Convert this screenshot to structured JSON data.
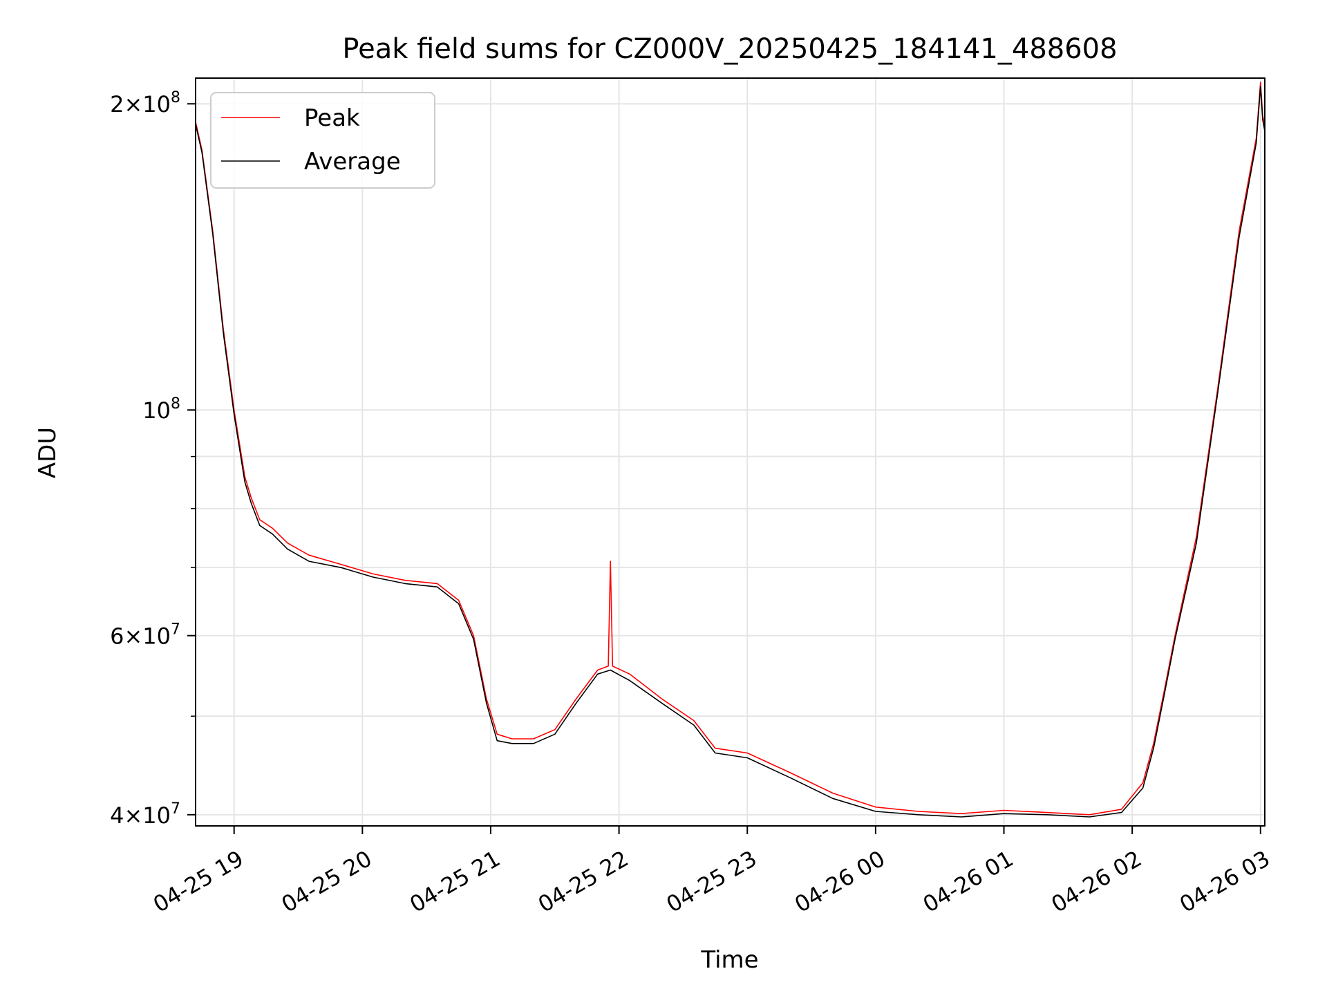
{
  "chart_data": {
    "type": "line",
    "title": "Peak field sums for CZ000V_20250425_184141_488608",
    "xlabel": "Time",
    "ylabel": "ADU",
    "y_scale": "log",
    "xlim": [
      "2025-04-25 18:42",
      "2025-04-26 03:02"
    ],
    "ylim": [
      39000000,
      212000000
    ],
    "grid": true,
    "legend_position": "top-left",
    "x_ticks": [
      {
        "t": "2025-04-25 19:00",
        "label": "04-25 19"
      },
      {
        "t": "2025-04-25 20:00",
        "label": "04-25 20"
      },
      {
        "t": "2025-04-25 21:00",
        "label": "04-25 21"
      },
      {
        "t": "2025-04-25 22:00",
        "label": "04-25 22"
      },
      {
        "t": "2025-04-25 23:00",
        "label": "04-25 23"
      },
      {
        "t": "2025-04-26 00:00",
        "label": "04-26 00"
      },
      {
        "t": "2025-04-26 01:00",
        "label": "04-26 01"
      },
      {
        "t": "2025-04-26 02:00",
        "label": "04-26 02"
      },
      {
        "t": "2025-04-26 03:00",
        "label": "04-26 03"
      }
    ],
    "y_ticks_major": [
      {
        "value": 40000000,
        "base": "4",
        "exp": "7"
      },
      {
        "value": 60000000,
        "base": "6",
        "exp": "7"
      },
      {
        "value": 100000000,
        "base": "",
        "exp": "8"
      },
      {
        "value": 200000000,
        "base": "2",
        "exp": "8"
      }
    ],
    "y_ticks_minor": [
      50000000,
      70000000,
      80000000,
      90000000
    ],
    "series": [
      {
        "name": "Peak",
        "color": "#ff0000",
        "x": [
          "2025-04-25 18:42",
          "2025-04-25 18:45",
          "2025-04-25 18:50",
          "2025-04-25 18:55",
          "2025-04-25 19:00",
          "2025-04-25 19:05",
          "2025-04-25 19:08",
          "2025-04-25 19:12",
          "2025-04-25 19:18",
          "2025-04-25 19:25",
          "2025-04-25 19:35",
          "2025-04-25 19:50",
          "2025-04-25 20:05",
          "2025-04-25 20:20",
          "2025-04-25 20:35",
          "2025-04-25 20:45",
          "2025-04-25 20:52",
          "2025-04-25 20:58",
          "2025-04-25 21:03",
          "2025-04-25 21:10",
          "2025-04-25 21:20",
          "2025-04-25 21:30",
          "2025-04-25 21:40",
          "2025-04-25 21:50",
          "2025-04-25 21:55",
          "2025-04-25 21:56",
          "2025-04-25 21:57",
          "2025-04-25 22:05",
          "2025-04-25 22:20",
          "2025-04-25 22:35",
          "2025-04-25 22:45",
          "2025-04-25 23:00",
          "2025-04-25 23:20",
          "2025-04-25 23:40",
          "2025-04-26 00:00",
          "2025-04-26 00:20",
          "2025-04-26 00:40",
          "2025-04-26 01:00",
          "2025-04-26 01:20",
          "2025-04-26 01:40",
          "2025-04-26 01:55",
          "2025-04-26 02:05",
          "2025-04-26 02:10",
          "2025-04-26 02:15",
          "2025-04-26 02:20",
          "2025-04-26 02:30",
          "2025-04-26 02:40",
          "2025-04-26 02:50",
          "2025-04-26 02:58",
          "2025-04-26 03:00",
          "2025-04-26 03:01",
          "2025-04-26 03:02"
        ],
        "values": [
          192000000,
          180000000,
          150000000,
          120000000,
          100000000,
          86000000,
          82000000,
          78000000,
          76500000,
          74000000,
          72000000,
          70500000,
          69000000,
          68000000,
          67500000,
          65000000,
          60000000,
          52000000,
          48000000,
          47500000,
          47500000,
          48500000,
          52000000,
          55500000,
          56000000,
          71000000,
          56000000,
          55000000,
          52000000,
          49500000,
          46500000,
          46000000,
          44000000,
          42000000,
          40700000,
          40300000,
          40100000,
          40400000,
          40200000,
          40000000,
          40500000,
          43000000,
          47000000,
          53000000,
          60000000,
          75000000,
          105000000,
          150000000,
          185000000,
          210000000,
          195000000,
          190000000
        ]
      },
      {
        "name": "Average",
        "color": "#000000",
        "x": [
          "2025-04-25 18:42",
          "2025-04-25 18:45",
          "2025-04-25 18:50",
          "2025-04-25 18:55",
          "2025-04-25 19:00",
          "2025-04-25 19:05",
          "2025-04-25 19:08",
          "2025-04-25 19:12",
          "2025-04-25 19:18",
          "2025-04-25 19:25",
          "2025-04-25 19:35",
          "2025-04-25 19:50",
          "2025-04-25 20:05",
          "2025-04-25 20:20",
          "2025-04-25 20:35",
          "2025-04-25 20:45",
          "2025-04-25 20:52",
          "2025-04-25 20:58",
          "2025-04-25 21:03",
          "2025-04-25 21:10",
          "2025-04-25 21:20",
          "2025-04-25 21:30",
          "2025-04-25 21:40",
          "2025-04-25 21:50",
          "2025-04-25 21:56",
          "2025-04-25 22:05",
          "2025-04-25 22:20",
          "2025-04-25 22:35",
          "2025-04-25 22:45",
          "2025-04-25 23:00",
          "2025-04-25 23:20",
          "2025-04-25 23:40",
          "2025-04-26 00:00",
          "2025-04-26 00:20",
          "2025-04-26 00:40",
          "2025-04-26 01:00",
          "2025-04-26 01:20",
          "2025-04-26 01:40",
          "2025-04-26 01:55",
          "2025-04-26 02:05",
          "2025-04-26 02:10",
          "2025-04-26 02:15",
          "2025-04-26 02:20",
          "2025-04-26 02:30",
          "2025-04-26 02:40",
          "2025-04-26 02:50",
          "2025-04-26 02:58",
          "2025-04-26 03:00",
          "2025-04-26 03:01",
          "2025-04-26 03:02"
        ],
        "values": [
          191000000,
          179000000,
          149000000,
          119000000,
          99000000,
          85000000,
          81000000,
          77000000,
          75500000,
          73000000,
          71000000,
          70000000,
          68500000,
          67500000,
          67000000,
          64500000,
          59500000,
          51500000,
          47300000,
          47000000,
          47000000,
          48000000,
          51500000,
          55000000,
          55500000,
          54200000,
          51500000,
          49000000,
          46000000,
          45500000,
          43500000,
          41500000,
          40300000,
          40000000,
          39800000,
          40100000,
          40000000,
          39800000,
          40200000,
          42500000,
          46500000,
          52500000,
          59500000,
          74000000,
          104000000,
          148000000,
          183000000,
          208000000,
          193000000,
          188000000
        ]
      }
    ]
  }
}
